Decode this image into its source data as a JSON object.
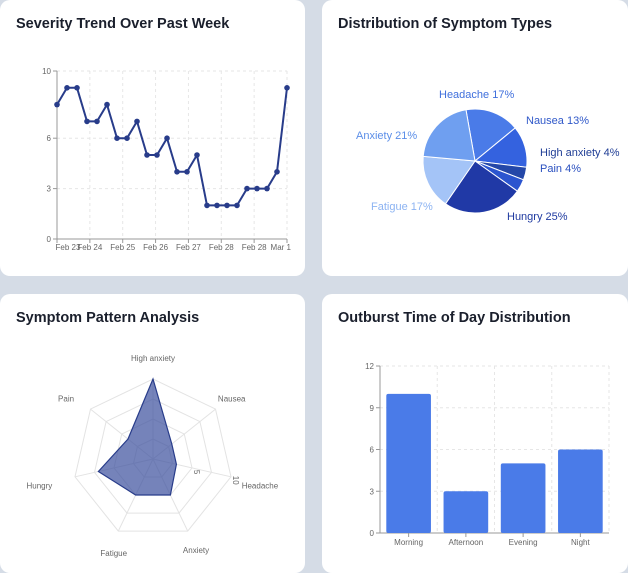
{
  "charts": {
    "trend": {
      "title": "Severity Trend Over Past Week"
    },
    "dist": {
      "title": "Distribution of Symptom Types"
    },
    "radar": {
      "title": "Symptom Pattern Analysis"
    },
    "outburst": {
      "title": "Outburst Time of Day Distribution"
    }
  },
  "chart_data": [
    {
      "id": "trend",
      "type": "line",
      "title": "Severity Trend Over Past Week",
      "x_tick_labels": [
        "Feb 23",
        "Feb 24",
        "Feb 25",
        "Feb 26",
        "Feb 27",
        "Feb 28",
        "Feb 28",
        "Mar 1"
      ],
      "y_ticks": [
        0,
        3,
        6,
        10
      ],
      "ylim": [
        0,
        10
      ],
      "values": [
        8,
        9,
        9,
        7,
        7,
        8,
        6,
        6,
        7,
        5,
        5,
        6,
        4,
        4,
        5,
        2,
        2,
        2,
        2,
        3,
        3,
        3,
        4,
        9
      ],
      "color": "#283c8a",
      "grid": true
    },
    {
      "id": "dist",
      "type": "pie",
      "title": "Distribution of Symptom Types",
      "slices": [
        {
          "label": "Headache",
          "value": 17,
          "text": "Headache 17%",
          "color": "#4a7be8",
          "label_color": "#3f6fdc"
        },
        {
          "label": "Nausea",
          "value": 13,
          "text": "Nausea 13%",
          "color": "#3462df",
          "label_color": "#2f58c9"
        },
        {
          "label": "High anxiety",
          "value": 4,
          "text": "High anxiety 4%",
          "color": "#2447a8",
          "label_color": "#1f3d95"
        },
        {
          "label": "Pain",
          "value": 4,
          "text": "Pain 4%",
          "color": "#2b55cf",
          "label_color": "#2a50c0"
        },
        {
          "label": "Hungry",
          "value": 25,
          "text": "Hungry 25%",
          "color": "#2039a6",
          "label_color": "#1f3aa0"
        },
        {
          "label": "Fatigue",
          "value": 17,
          "text": "Fatigue 17%",
          "color": "#a4c4f7",
          "label_color": "#8cb3f2"
        },
        {
          "label": "Anxiety",
          "value": 21,
          "text": "Anxiety 21%",
          "color": "#6f9ff0",
          "label_color": "#5b8ee8"
        }
      ]
    },
    {
      "id": "radar",
      "type": "radar",
      "title": "Symptom Pattern Analysis",
      "axes": [
        "High anxiety",
        "Nausea",
        "Headache",
        "Anxiety",
        "Fatigue",
        "Hungry",
        "Pain"
      ],
      "values": [
        10,
        3,
        3,
        5,
        5,
        7,
        4
      ],
      "max": 10,
      "radial_tick_labels": [
        "5",
        "10"
      ],
      "fill": "#3a4f9c",
      "stroke": "#283c8a"
    },
    {
      "id": "outburst",
      "type": "bar",
      "title": "Outburst Time of Day Distribution",
      "categories": [
        "Morning",
        "Afternoon",
        "Evening",
        "Night"
      ],
      "values": [
        10,
        3,
        5,
        6
      ],
      "ylim": [
        0,
        12
      ],
      "y_ticks": [
        0,
        3,
        6,
        9,
        12
      ],
      "color": "#4a7be8",
      "grid": true
    }
  ]
}
